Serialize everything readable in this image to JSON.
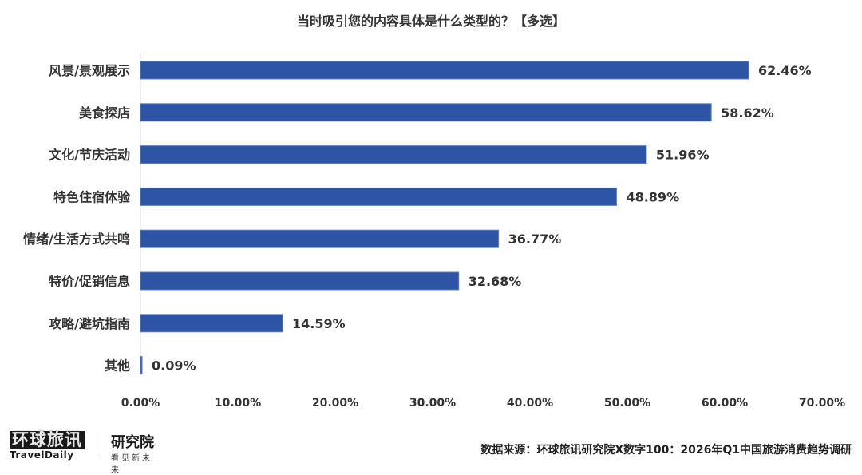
{
  "chart_data": {
    "type": "bar",
    "orientation": "horizontal",
    "title": "当时吸引您的内容具体是什么类型的？【多选】",
    "categories": [
      "风景/景观展示",
      "美食探店",
      "文化/节庆活动",
      "特色住宿体验",
      "情绪/生活方式共鸣",
      "特价/促销信息",
      "攻略/避坑指南",
      "其他"
    ],
    "values": [
      62.46,
      58.62,
      51.96,
      48.89,
      36.77,
      32.68,
      14.59,
      0.09
    ],
    "value_labels": [
      "62.46%",
      "58.62%",
      "51.96%",
      "48.89%",
      "36.77%",
      "32.68%",
      "14.59%",
      "0.09%"
    ],
    "xlim": [
      0,
      70
    ],
    "x_ticks": [
      "0.00%",
      "10.00%",
      "20.00%",
      "30.00%",
      "40.00%",
      "50.00%",
      "60.00%",
      "70.00%"
    ],
    "grid": false,
    "bar_color": "#2e55a5"
  },
  "logo": {
    "brand": "环球旅讯",
    "brand_en": "TravelDaily",
    "institute": "研究院",
    "slogan": "看见新未来"
  },
  "source": "数据来源：环球旅讯研究院X数字100：2026年Q1中国旅游消费趋势调研"
}
